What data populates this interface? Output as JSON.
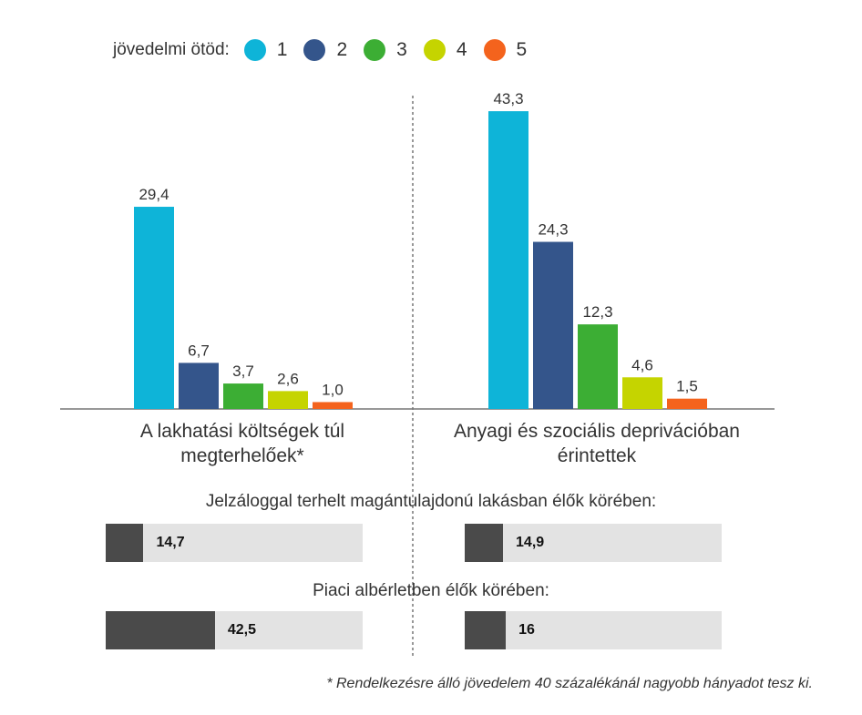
{
  "legend": {
    "title": "jövedelmi ötöd:",
    "items": [
      {
        "label": "1",
        "color": "#0eb4d8"
      },
      {
        "label": "2",
        "color": "#34558b"
      },
      {
        "label": "3",
        "color": "#3cae34"
      },
      {
        "label": "4",
        "color": "#c5d400"
      },
      {
        "label": "5",
        "color": "#f4631d"
      }
    ]
  },
  "chart_data": [
    {
      "type": "bar",
      "title": "",
      "categories": [
        "A lakhatási költségek túl megterhelőek*",
        "Anyagi és szociális deprivációban érintettek"
      ],
      "category_lines": [
        [
          "A lakhatási költségek túl",
          "megterhelőek*"
        ],
        [
          "Anyagi és szociális deprivációban",
          "érintettek"
        ]
      ],
      "series": [
        {
          "name": "1",
          "values": [
            29.4,
            43.3
          ],
          "labels": [
            "29,4",
            "43,3"
          ]
        },
        {
          "name": "2",
          "values": [
            6.7,
            24.3
          ],
          "labels": [
            "6,7",
            "24,3"
          ]
        },
        {
          "name": "3",
          "values": [
            3.7,
            12.3
          ],
          "labels": [
            "3,7",
            "12,3"
          ]
        },
        {
          "name": "4",
          "values": [
            2.6,
            4.6
          ],
          "labels": [
            "2,6",
            "4,6"
          ]
        },
        {
          "name": "5",
          "values": [
            1.0,
            1.5
          ],
          "labels": [
            "1,0",
            "1,5"
          ]
        }
      ],
      "ylim": [
        0,
        45
      ],
      "xlabel": "",
      "ylabel": ""
    },
    {
      "type": "bar",
      "orientation": "horizontal",
      "title": "Jelzáloggal terhelt magántulajdonú lakásban élők körében:",
      "categories": [
        "A lakhatási költségek túl megterhelőek*",
        "Anyagi és szociális deprivációban érintettek"
      ],
      "values": [
        14.7,
        14.9
      ],
      "labels": [
        "14,7",
        "14,9"
      ],
      "xlim": [
        0,
        100
      ]
    },
    {
      "type": "bar",
      "orientation": "horizontal",
      "title": "Piaci albérletben élők körében:",
      "categories": [
        "A lakhatási költségek túl megterhelőek*",
        "Anyagi és szociális deprivációban érintettek"
      ],
      "values": [
        42.5,
        16
      ],
      "labels": [
        "42,5",
        "16"
      ],
      "xlim": [
        0,
        100
      ]
    }
  ],
  "footnote": "* Rendelkezésre álló jövedelem 40 százalékánál nagyobb hányadot tesz ki."
}
